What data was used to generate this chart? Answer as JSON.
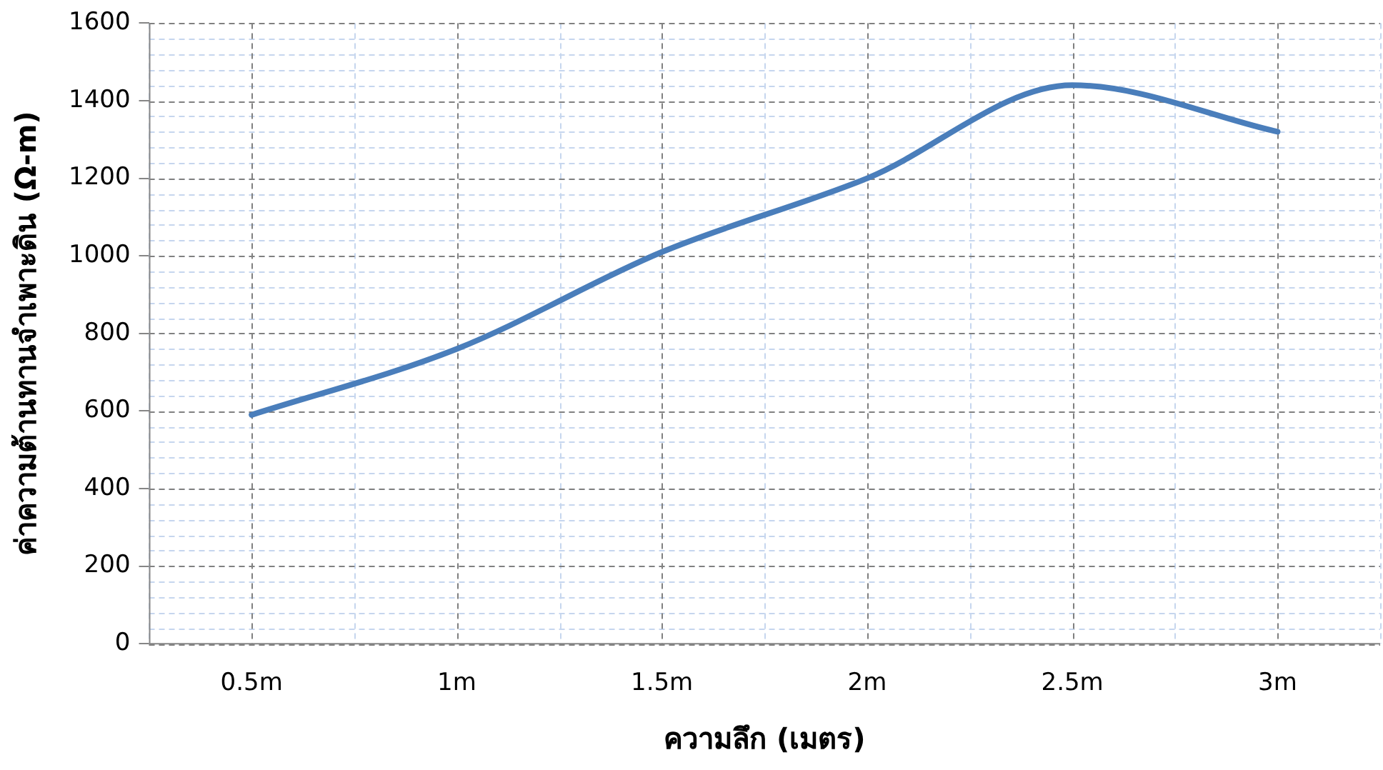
{
  "chart_data": {
    "type": "line",
    "xlabel": "ความลึก (เมตร)",
    "ylabel": "ค่าความต้านทานจำเพาะดิน (Ω-m)",
    "categories": [
      "0.5m",
      "1m",
      "1.5m",
      "2m",
      "2.5m",
      "3m"
    ],
    "series": [
      {
        "color": "#4a7ebb",
        "values": [
          590,
          760,
          1010,
          1200,
          1440,
          1320
        ]
      }
    ],
    "ylim": [
      0,
      1600
    ],
    "yticks": [
      0,
      200,
      400,
      600,
      800,
      1000,
      1200,
      1400,
      1600
    ],
    "grid": true,
    "marker": "none",
    "line_style": "solid",
    "legend": false
  }
}
